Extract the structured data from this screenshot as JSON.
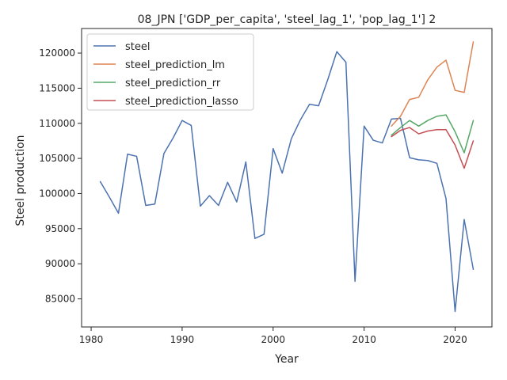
{
  "chart_data": {
    "type": "line",
    "title": "08_JPN ['GDP_per_capita', 'steel_lag_1', 'pop_lag_1'] 2",
    "xlabel": "Year",
    "ylabel": "Steel production",
    "xlim": [
      1978.95,
      2024.05
    ],
    "ylim": [
      81000,
      123500
    ],
    "x_ticks": [
      1980,
      1990,
      2000,
      2010,
      2020
    ],
    "y_ticks": [
      85000,
      90000,
      95000,
      100000,
      105000,
      110000,
      115000,
      120000
    ],
    "grid": false,
    "legend_position": "top-left",
    "series": [
      {
        "name": "steel",
        "color": "#4c72b0",
        "x": [
          1981,
          1982,
          1983,
          1984,
          1985,
          1986,
          1987,
          1988,
          1989,
          1990,
          1991,
          1992,
          1993,
          1994,
          1995,
          1996,
          1997,
          1998,
          1999,
          2000,
          2001,
          2002,
          2003,
          2004,
          2005,
          2006,
          2007,
          2008,
          2009,
          2010,
          2011,
          2012,
          2013,
          2014,
          2015,
          2016,
          2017,
          2018,
          2019,
          2020,
          2021,
          2022
        ],
        "values": [
          101700,
          99500,
          97200,
          105600,
          105300,
          98300,
          98500,
          105700,
          107900,
          110400,
          109700,
          98200,
          99700,
          98300,
          101600,
          98800,
          104500,
          93600,
          94200,
          106400,
          102900,
          107800,
          110500,
          112700,
          112500,
          116200,
          120200,
          118700,
          87500,
          109600,
          107600,
          107200,
          110600,
          110700,
          105100,
          104800,
          104700,
          104300,
          99300,
          83200,
          96300,
          89200
        ]
      },
      {
        "name": "steel_prediction_lm",
        "color": "#dd8452",
        "x": [
          2013,
          2014,
          2015,
          2016,
          2017,
          2018,
          2019,
          2020,
          2021,
          2022
        ],
        "values": [
          109600,
          111000,
          113400,
          113700,
          116200,
          118000,
          119000,
          114700,
          114400,
          121600
        ]
      },
      {
        "name": "steel_prediction_rr",
        "color": "#55a868",
        "x": [
          2013,
          2014,
          2015,
          2016,
          2017,
          2018,
          2019,
          2020,
          2021,
          2022
        ],
        "values": [
          108300,
          109400,
          110400,
          109600,
          110400,
          111000,
          111200,
          108800,
          105800,
          110400
        ]
      },
      {
        "name": "steel_prediction_lasso",
        "color": "#c44e52",
        "x": [
          2013,
          2014,
          2015,
          2016,
          2017,
          2018,
          2019,
          2020,
          2021,
          2022
        ],
        "values": [
          108100,
          109000,
          109400,
          108500,
          108900,
          109100,
          109100,
          106900,
          103600,
          107500
        ]
      }
    ]
  }
}
